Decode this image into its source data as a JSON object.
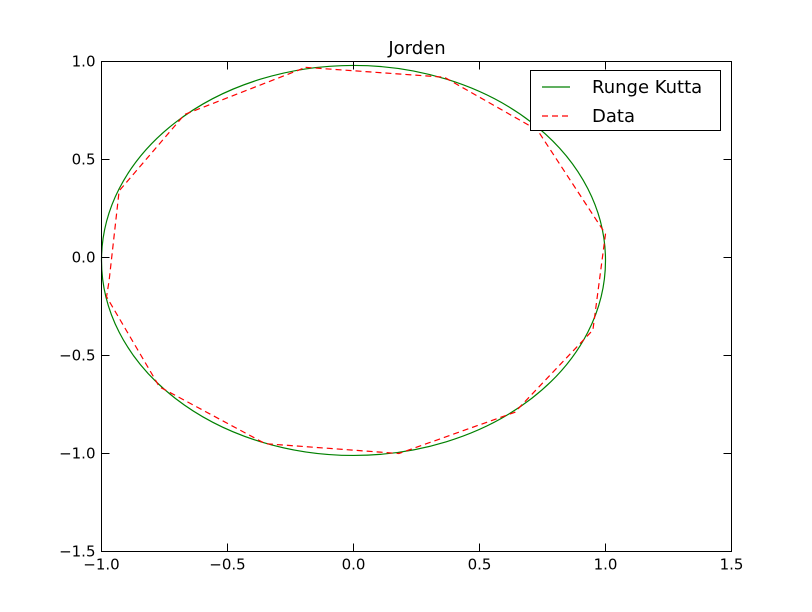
{
  "chart_data": {
    "type": "line",
    "title": "Jorden",
    "xlabel": "",
    "ylabel": "",
    "xlim": [
      -1.0,
      1.5
    ],
    "ylim": [
      -1.5,
      1.0
    ],
    "xticks": [
      "−1.0",
      "−0.5",
      "0.0",
      "0.5",
      "1.0",
      "1.5"
    ],
    "yticks": [
      "−1.5",
      "−1.0",
      "−0.5",
      "0.0",
      "0.5",
      "1.0"
    ],
    "grid": false,
    "legend_position": "top-right",
    "series": [
      {
        "name": "Runge Kutta",
        "style": "solid",
        "color": "#008000",
        "shape": "ellipse",
        "center": [
          0.0,
          -0.015
        ],
        "radii": [
          1.0,
          0.995
        ]
      },
      {
        "name": "Data",
        "style": "dashed",
        "color": "#ff0000",
        "x": [
          -0.19,
          0.36,
          0.73,
          1.0,
          0.95,
          0.64,
          0.18,
          -0.35,
          -0.77,
          -0.98,
          -0.97,
          -0.93,
          -0.67,
          -0.19
        ],
        "y": [
          0.97,
          0.92,
          0.65,
          0.12,
          -0.37,
          -0.79,
          -1.0,
          -0.95,
          -0.66,
          -0.2,
          -0.12,
          0.34,
          0.73,
          0.97
        ]
      }
    ]
  }
}
